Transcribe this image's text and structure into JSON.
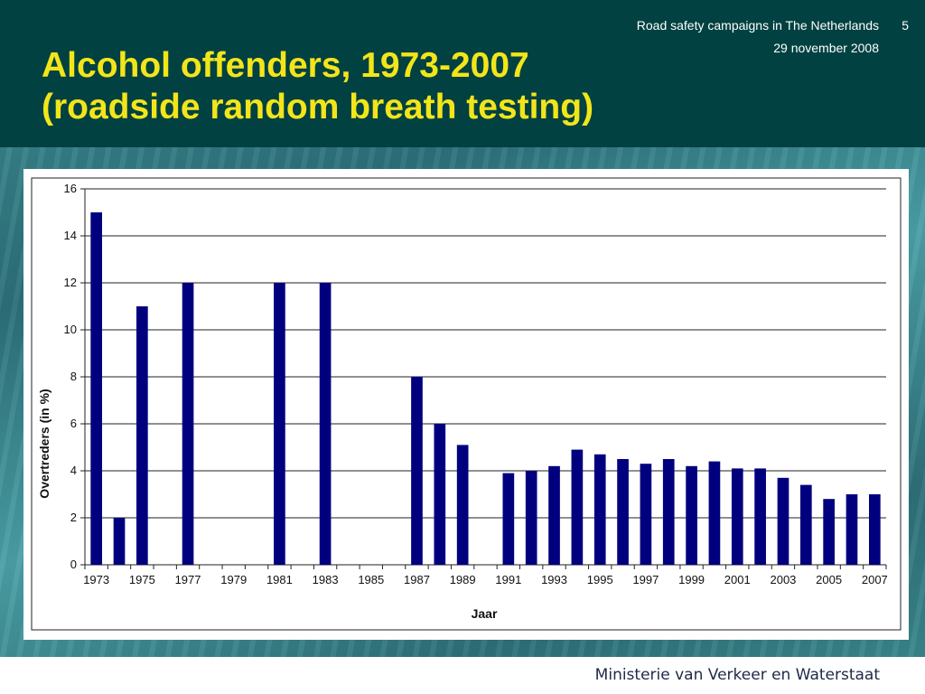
{
  "slide": {
    "title": "Alcohol offenders, 1973-2007\n(roadside random breath testing)",
    "presentation": "Road safety campaigns in The Netherlands",
    "date": "29 november 2008",
    "page_number": "5",
    "ministry": "Ministerie van Verkeer en Waterstaat"
  },
  "colors": {
    "header": "#024141",
    "title": "#f2e51a",
    "bar": "#00007f"
  },
  "chart_data": {
    "type": "bar",
    "xlabel": "Jaar",
    "ylabel": "Overtreders (in %)",
    "ylim": [
      0,
      16
    ],
    "yticks": [
      0,
      2,
      4,
      6,
      8,
      10,
      12,
      14,
      16
    ],
    "grid": true,
    "categories": [
      "1973",
      "1974",
      "1975",
      "1976",
      "1977",
      "1978",
      "1979",
      "1980",
      "1981",
      "1982",
      "1983",
      "1984",
      "1985",
      "1986",
      "1987",
      "1988",
      "1989",
      "1990",
      "1991",
      "1992",
      "1993",
      "1994",
      "1995",
      "1996",
      "1997",
      "1998",
      "1999",
      "2000",
      "2001",
      "2002",
      "2003",
      "2004",
      "2005",
      "2006",
      "2007"
    ],
    "tick_labels": [
      "1973",
      "1975",
      "1977",
      "1979",
      "1981",
      "1983",
      "1985",
      "1987",
      "1989",
      "1991",
      "1993",
      "1995",
      "1997",
      "1999",
      "2001",
      "2003",
      "2005",
      "2007"
    ],
    "values": [
      15,
      2,
      11,
      null,
      12,
      null,
      null,
      null,
      12,
      null,
      12,
      null,
      null,
      null,
      8,
      6,
      5.1,
      null,
      3.9,
      4.0,
      4.2,
      4.9,
      4.7,
      4.5,
      4.3,
      4.5,
      4.2,
      4.4,
      4.1,
      4.1,
      3.7,
      3.4,
      2.8,
      3.0,
      3.0
    ]
  }
}
